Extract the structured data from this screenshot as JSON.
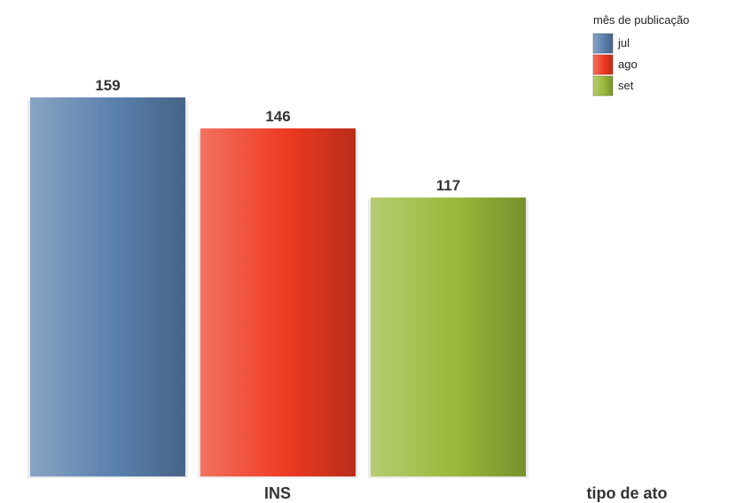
{
  "chart_data": {
    "type": "bar",
    "categories": [
      "INS"
    ],
    "series": [
      {
        "name": "jul",
        "values": [
          159
        ],
        "color": "#5a80ad"
      },
      {
        "name": "ago",
        "values": [
          146
        ],
        "color": "#ee3a22"
      },
      {
        "name": "set",
        "values": [
          117
        ],
        "color": "#9ab83a"
      }
    ],
    "xlabel": "tipo de ato",
    "ylabel": "",
    "ylim": [
      0,
      159
    ],
    "grid": false,
    "legend": {
      "title": "mês de publicação",
      "position": "top-right"
    },
    "data_labels": true
  }
}
